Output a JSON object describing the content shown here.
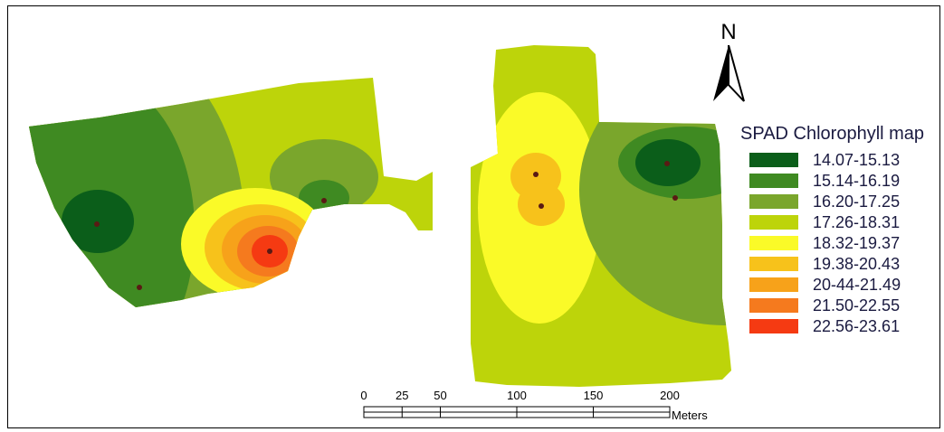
{
  "legend": {
    "title": "SPAD Chlorophyll map",
    "classes": [
      {
        "label": "14.07-15.13",
        "color": "#0b5e1a"
      },
      {
        "label": "15.14-16.19",
        "color": "#3f8a22"
      },
      {
        "label": "16.20-17.25",
        "color": "#7aa62c"
      },
      {
        "label": "17.26-18.31",
        "color": "#bdd40a"
      },
      {
        "label": "18.32-19.37",
        "color": "#fafa28"
      },
      {
        "label": "19.38-20.43",
        "color": "#f7c21b"
      },
      {
        "label": "20-44-21.49",
        "color": "#f7a21a"
      },
      {
        "label": "21.50-22.55",
        "color": "#f57a1e"
      },
      {
        "label": "22.56-23.61",
        "color": "#f53a12"
      }
    ]
  },
  "north_arrow": {
    "label": "N",
    "icon": "north-arrow-icon"
  },
  "scale_bar": {
    "ticks": [
      "0",
      "25",
      "50",
      "100",
      "150",
      "200"
    ],
    "tick_values": [
      0,
      25,
      50,
      100,
      150,
      200
    ],
    "unit": "Meters"
  }
}
